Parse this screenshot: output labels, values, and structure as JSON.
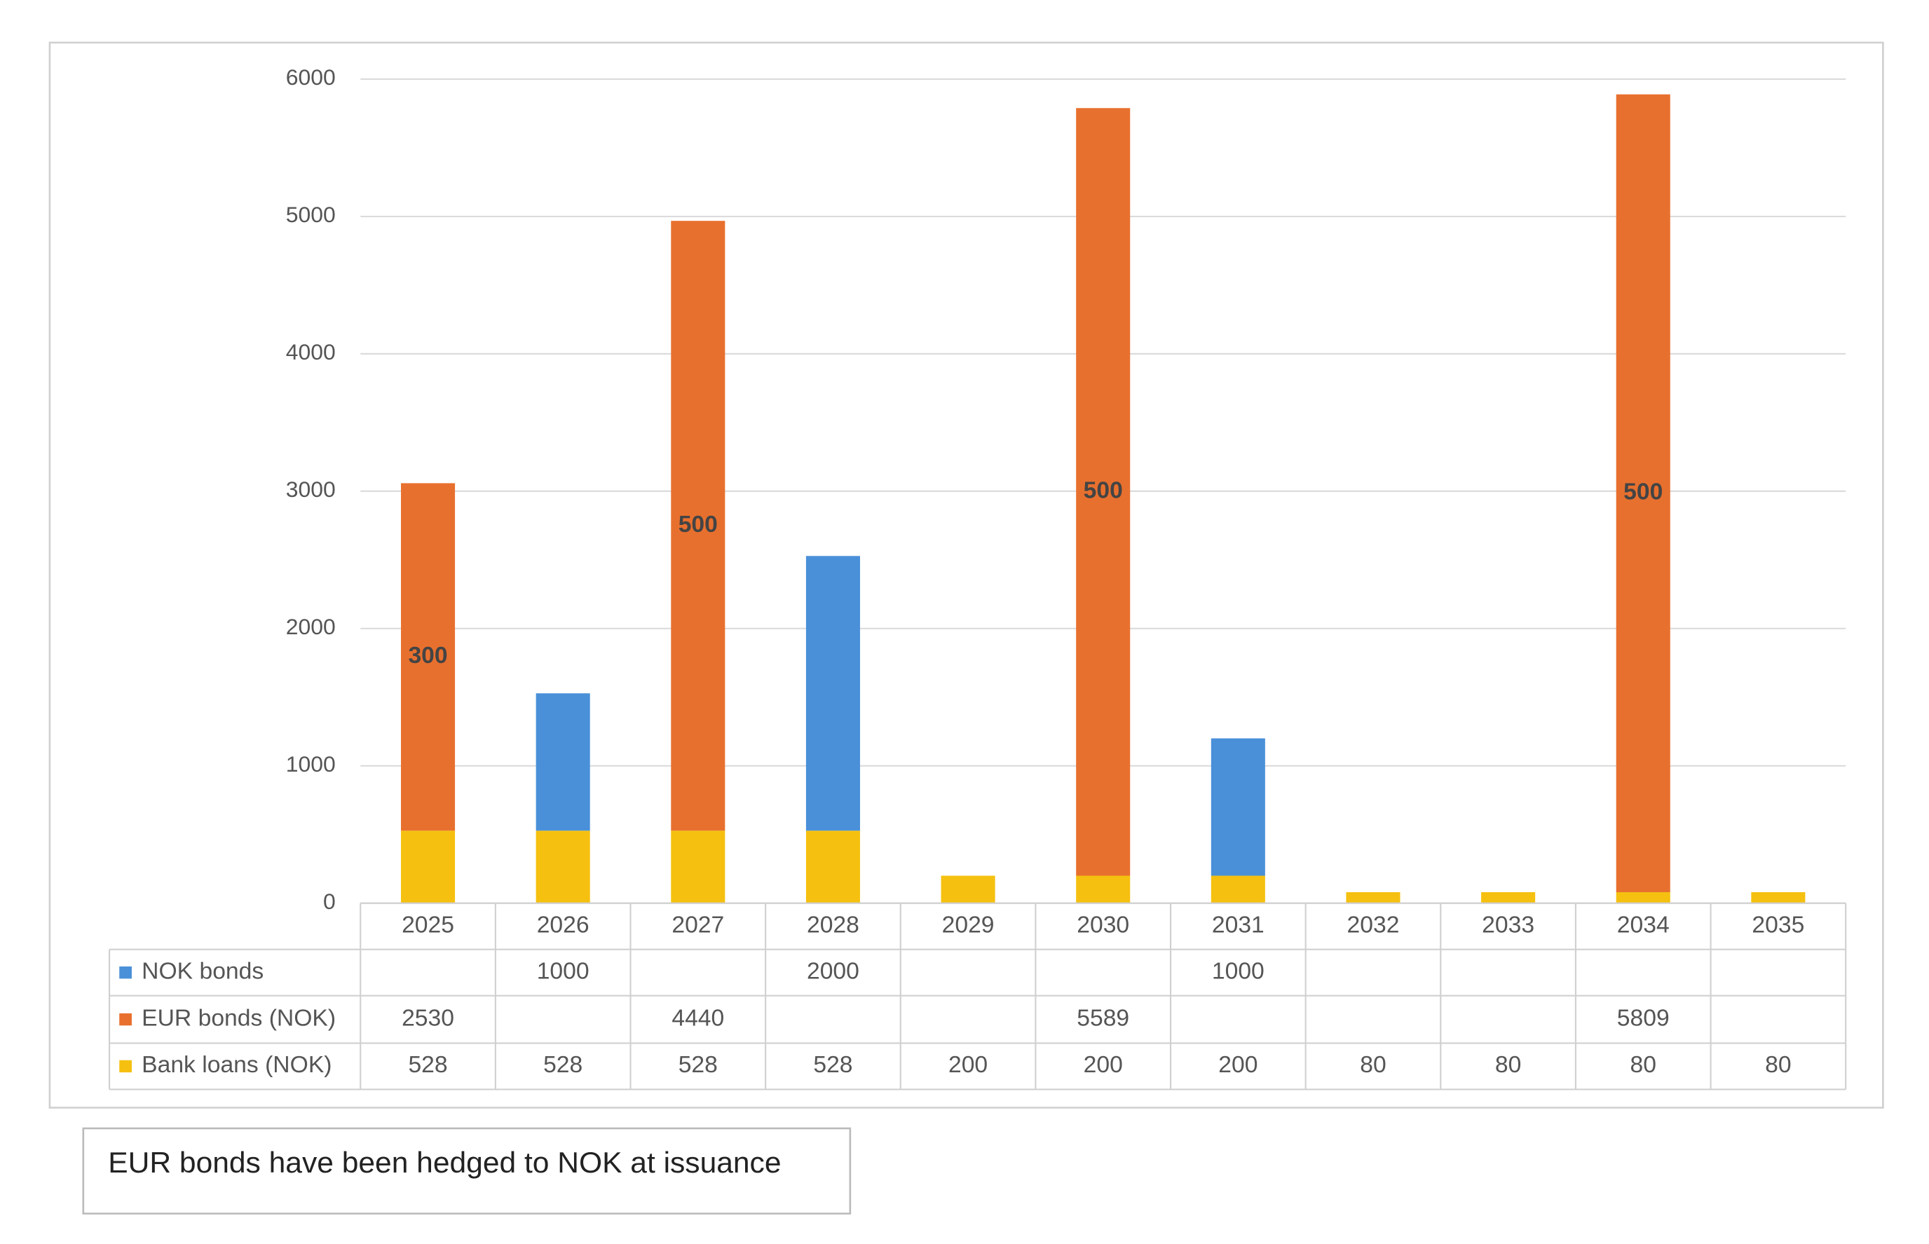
{
  "chart_data": {
    "type": "stacked_bar",
    "categories": [
      "2025",
      "2026",
      "2027",
      "2028",
      "2029",
      "2030",
      "2031",
      "2032",
      "2033",
      "2034",
      "2035"
    ],
    "series": [
      {
        "name": "Bank loans (NOK)",
        "color": "#f5c00f",
        "values": [
          528,
          528,
          528,
          528,
          200,
          200,
          200,
          80,
          80,
          80,
          80
        ]
      },
      {
        "name": "NOK bonds",
        "color": "#4a90d9",
        "values": [
          null,
          1000,
          null,
          2000,
          null,
          null,
          1000,
          null,
          null,
          null,
          null
        ]
      },
      {
        "name": "EUR bonds (NOK)",
        "color": "#e8702e",
        "values": [
          2530,
          null,
          4440,
          null,
          null,
          5589,
          null,
          null,
          null,
          5809,
          null
        ]
      }
    ],
    "table_order": [
      1,
      2,
      0
    ],
    "annotations": [
      {
        "x": "2025",
        "text": "300"
      },
      {
        "x": "2027",
        "text": "500"
      },
      {
        "x": "2030",
        "text": "500"
      },
      {
        "x": "2034",
        "text": "500"
      }
    ],
    "ylim": [
      0,
      6000
    ],
    "yticks": [
      0,
      1000,
      2000,
      3000,
      4000,
      5000,
      6000
    ],
    "grid": true,
    "note": "EUR bonds have been hedged to NOK at issuance"
  }
}
